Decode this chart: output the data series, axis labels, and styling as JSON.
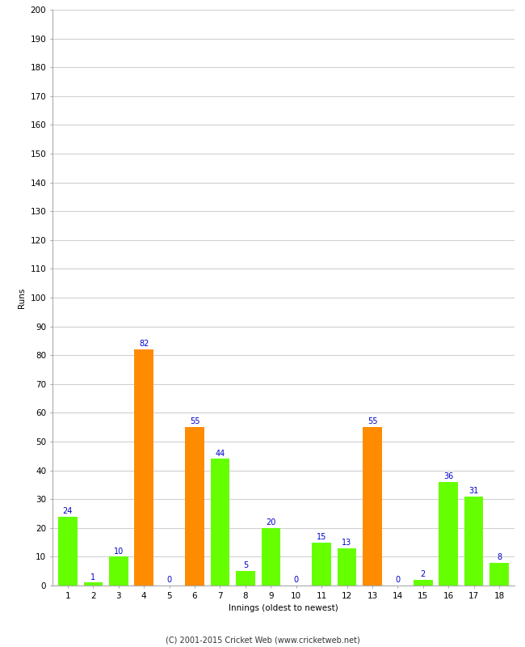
{
  "xlabel": "Innings (oldest to newest)",
  "ylabel": "Runs",
  "categories": [
    1,
    2,
    3,
    4,
    5,
    6,
    7,
    8,
    9,
    10,
    11,
    12,
    13,
    14,
    15,
    16,
    17,
    18
  ],
  "values": [
    24,
    1,
    10,
    82,
    0,
    55,
    44,
    5,
    20,
    0,
    15,
    13,
    55,
    0,
    2,
    36,
    31,
    8
  ],
  "bar_colors": [
    "#66ff00",
    "#66ff00",
    "#66ff00",
    "#ff8c00",
    "#66ff00",
    "#ff8c00",
    "#66ff00",
    "#66ff00",
    "#66ff00",
    "#66ff00",
    "#66ff00",
    "#66ff00",
    "#ff8c00",
    "#66ff00",
    "#66ff00",
    "#66ff00",
    "#66ff00",
    "#66ff00"
  ],
  "label_color": "#0000cc",
  "label_fontsize": 7,
  "ylim": [
    0,
    200
  ],
  "ytick_interval": 10,
  "background_color": "#ffffff",
  "grid_color": "#d0d0d0",
  "ylabel_fontsize": 7.5,
  "xlabel_fontsize": 7.5,
  "tick_fontsize": 7.5,
  "footer": "(C) 2001-2015 Cricket Web (www.cricketweb.net)",
  "footer_fontsize": 7
}
